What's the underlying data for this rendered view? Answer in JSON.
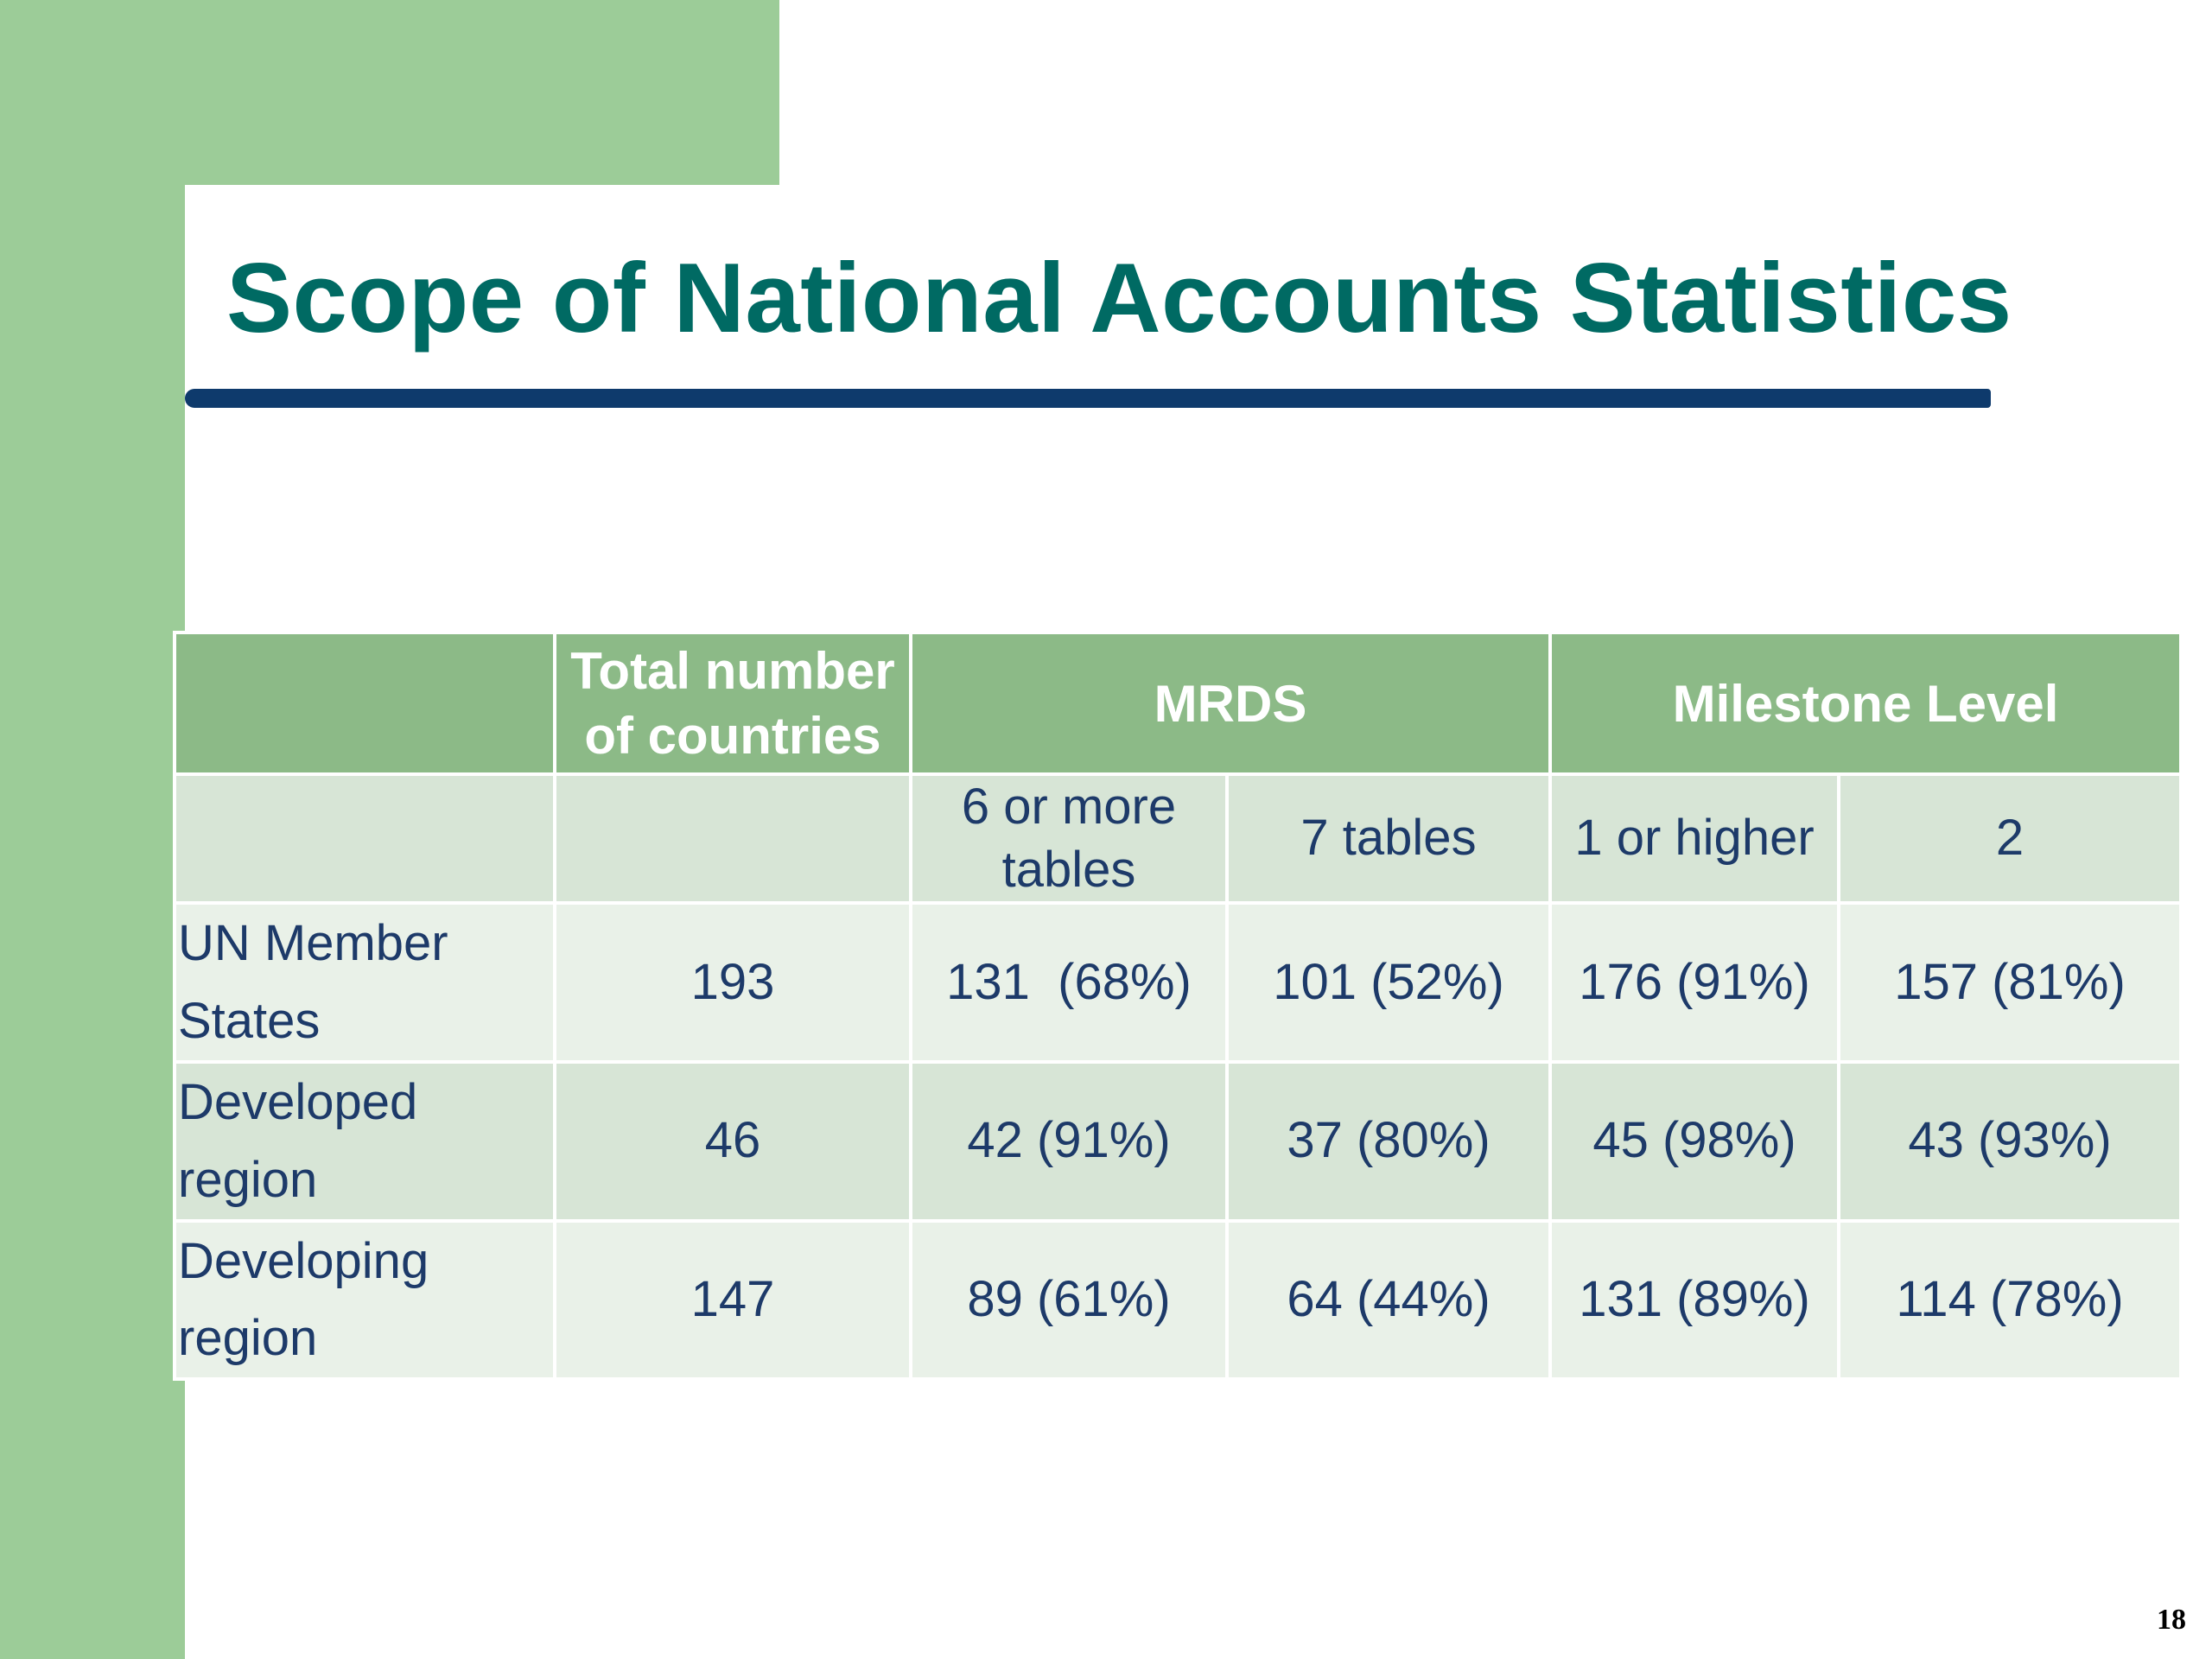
{
  "slide": {
    "title": "Scope of National Accounts Statistics",
    "page_number": "18"
  },
  "table": {
    "header": {
      "corner": "",
      "total": "Total number of countries",
      "mrds": "MRDS",
      "milestone": "Milestone Level"
    },
    "subheader": {
      "corner": "",
      "total": "",
      "mrds_6": "6 or more tables",
      "mrds_7": "7 tables",
      "ms_1": "1 or higher",
      "ms_2": "2"
    },
    "rows": [
      {
        "label": "UN Member States",
        "total": "193",
        "mrds_6": "131  (68%)",
        "mrds_7": "101 (52%)",
        "ms_1": "176 (91%)",
        "ms_2": "157 (81%)"
      },
      {
        "label": "Developed region",
        "total": "46",
        "mrds_6": "42 (91%)",
        "mrds_7": "37 (80%)",
        "ms_1": "45 (98%)",
        "ms_2": "43 (93%)"
      },
      {
        "label": "Developing region",
        "total": "147",
        "mrds_6": "89 (61%)",
        "mrds_7": "64 (44%)",
        "ms_1": "131 (89%)",
        "ms_2": "114 (78%)"
      }
    ]
  },
  "colors": {
    "accent_green": "#9ccc98",
    "header_green": "#8cba87",
    "title_teal": "#006a63",
    "rule_navy": "#0e3a6c",
    "text_navy": "#1d3a69"
  }
}
